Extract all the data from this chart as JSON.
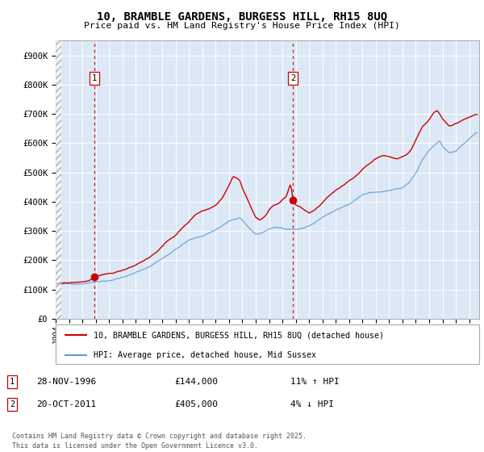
{
  "title": "10, BRAMBLE GARDENS, BURGESS HILL, RH15 8UQ",
  "subtitle": "Price paid vs. HM Land Registry's House Price Index (HPI)",
  "legend_line1": "10, BRAMBLE GARDENS, BURGESS HILL, RH15 8UQ (detached house)",
  "legend_line2": "HPI: Average price, detached house, Mid Sussex",
  "annotation1": {
    "num": "1",
    "date": "28-NOV-1996",
    "price": "£144,000",
    "hpi": "11% ↑ HPI"
  },
  "annotation2": {
    "num": "2",
    "date": "20-OCT-2011",
    "price": "£405,000",
    "hpi": "4% ↓ HPI"
  },
  "footer": "Contains HM Land Registry data © Crown copyright and database right 2025.\nThis data is licensed under the Open Government Licence v3.0.",
  "sale_color": "#cc0000",
  "hpi_color": "#5b9bd5",
  "ylim": [
    0,
    950000
  ],
  "yticks": [
    0,
    100000,
    200000,
    300000,
    400000,
    500000,
    600000,
    700000,
    800000,
    900000
  ],
  "ytick_labels": [
    "£0",
    "£100K",
    "£200K",
    "£300K",
    "£400K",
    "£500K",
    "£600K",
    "£700K",
    "£800K",
    "£900K"
  ],
  "xmin": 1994.0,
  "xmax": 2025.75,
  "vline1_x": 1996.92,
  "vline2_x": 2011.8,
  "sale_points": [
    {
      "year": 1996.92,
      "value": 144000,
      "label": "1"
    },
    {
      "year": 2011.8,
      "value": 405000,
      "label": "2"
    }
  ]
}
